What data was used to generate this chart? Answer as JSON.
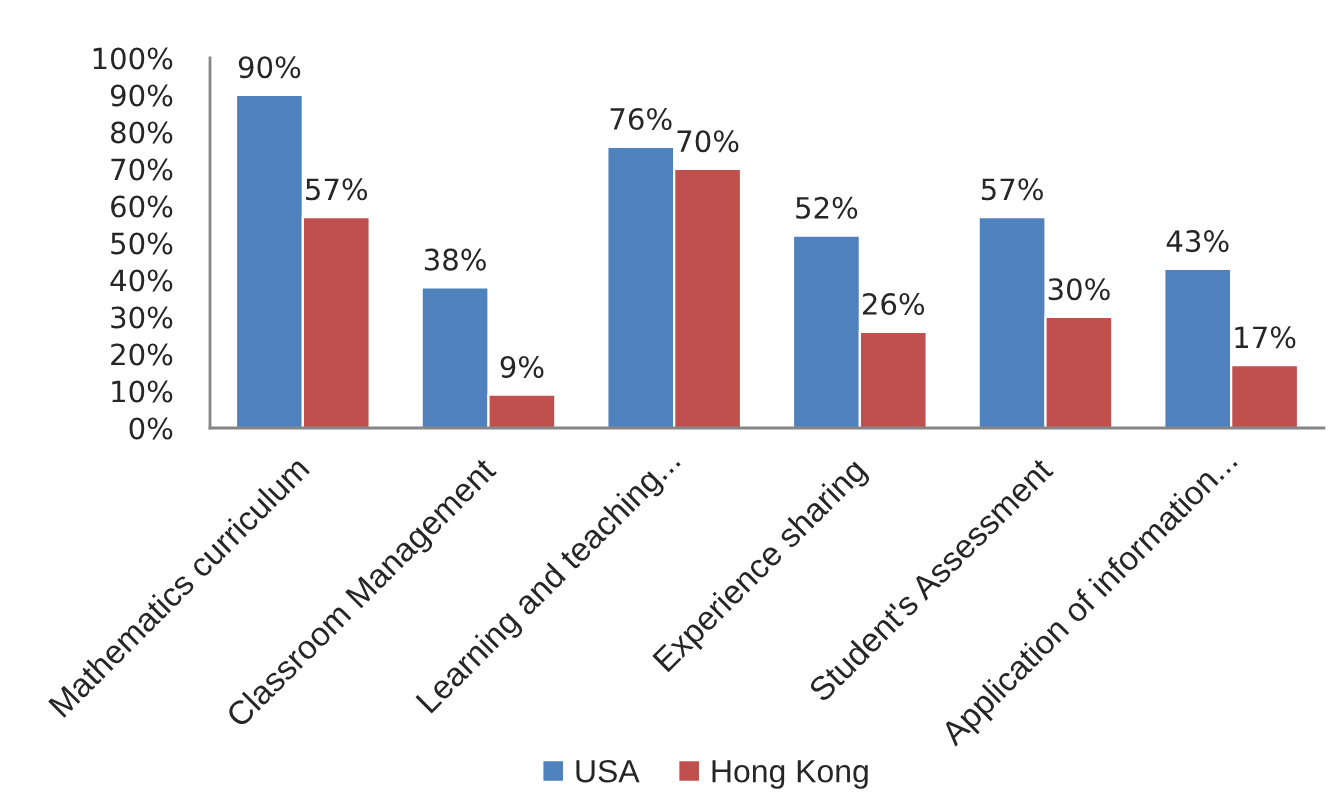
{
  "chart_data": {
    "type": "bar",
    "categories": [
      "Mathematics curriculum",
      "Classroom Management",
      "Learning and teaching...",
      "Experience sharing",
      "Student's Assessment",
      "Application of information..."
    ],
    "series": [
      {
        "name": "USA",
        "color": "#4f81bd",
        "values": [
          90,
          38,
          76,
          52,
          57,
          43
        ],
        "value_labels": [
          "90%",
          "38%",
          "76%",
          "52%",
          "57%",
          "43%"
        ]
      },
      {
        "name": "Hong Kong",
        "color": "#c0504d",
        "values": [
          57,
          9,
          70,
          26,
          30,
          17
        ],
        "value_labels": [
          "57%",
          "9%",
          "70%",
          "26%",
          "30%",
          "17%"
        ]
      }
    ],
    "ylim": [
      0,
      100
    ],
    "yticks": [
      {
        "value": 0,
        "label": "0%"
      },
      {
        "value": 10,
        "label": "10%"
      },
      {
        "value": 20,
        "label": "20%"
      },
      {
        "value": 30,
        "label": "30%"
      },
      {
        "value": 40,
        "label": "40%"
      },
      {
        "value": 50,
        "label": "50%"
      },
      {
        "value": 60,
        "label": "60%"
      },
      {
        "value": 70,
        "label": "70%"
      },
      {
        "value": 80,
        "label": "80%"
      },
      {
        "value": 90,
        "label": "90%"
      },
      {
        "value": 100,
        "label": "100%"
      }
    ],
    "grid": false,
    "legend": "bottom"
  }
}
